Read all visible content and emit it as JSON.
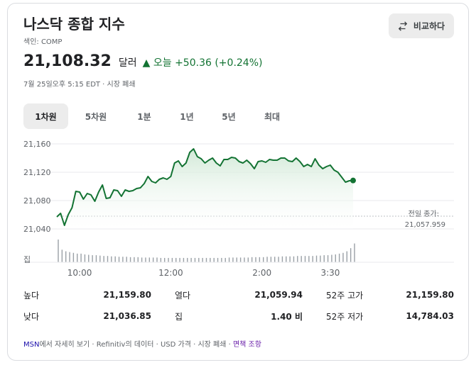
{
  "header": {
    "title": "나스닥 종합 지수",
    "index_label": "색인: COMP",
    "compare_label": "비교하다"
  },
  "quote": {
    "price": "21,108.32",
    "currency": "달러",
    "change_prefix": "▲ 오늘",
    "change": "+50.36 (+0.24%)",
    "timestamp": "7월 25일오후 5:15 EDT · 시장 폐쇄"
  },
  "tabs": [
    {
      "label": "1차원"
    },
    {
      "label": "5차원"
    },
    {
      "label": "1분"
    },
    {
      "label": "1년"
    },
    {
      "label": "5년"
    },
    {
      "label": "최대"
    }
  ],
  "prev_close": {
    "label": "전일 종가:",
    "value": "21,057.959"
  },
  "volume_label": "집",
  "colors": {
    "line": "#137333",
    "fill_top": "#cfe8d5",
    "accent": "#137333"
  },
  "chart_data": {
    "type": "area",
    "y_ticks": [
      "21,160",
      "21,120",
      "21,080",
      "21,040"
    ],
    "y_tick_values": [
      21160,
      21120,
      21080,
      21040
    ],
    "ylim": [
      21030,
      21170
    ],
    "x_ticks": [
      "10:00",
      "12:00",
      "2:00",
      "3:30"
    ],
    "x_tick_times": [
      600,
      720,
      840,
      930
    ],
    "x_range_minutes": [
      570,
      960
    ],
    "prev_close_value": 21057.959,
    "series": [
      {
        "x": [
          570,
          575,
          580,
          585,
          590,
          595,
          600,
          605,
          610,
          615,
          620,
          625,
          630,
          635,
          640,
          645,
          650,
          655,
          660,
          665,
          670,
          675,
          680,
          685,
          690,
          695,
          700,
          705,
          710,
          715,
          720,
          725,
          730,
          735,
          740,
          745,
          750,
          755,
          760,
          765,
          770,
          775,
          780,
          785,
          790,
          795,
          800,
          805,
          810,
          815,
          820,
          825,
          830,
          835,
          840,
          845,
          850,
          855,
          860,
          865,
          870,
          875,
          880,
          885,
          890,
          895,
          900,
          905,
          910,
          915,
          920,
          925,
          930,
          935,
          940,
          945,
          950,
          955,
          960
        ],
        "values": [
          21057,
          21062,
          21045,
          21060,
          21070,
          21093,
          21092,
          21082,
          21090,
          21088,
          21079,
          21092,
          21102,
          21083,
          21084,
          21095,
          21094,
          21086,
          21095,
          21093,
          21094,
          21097,
          21098,
          21104,
          21114,
          21107,
          21105,
          21110,
          21112,
          21110,
          21114,
          21133,
          21136,
          21128,
          21133,
          21148,
          21153,
          21142,
          21139,
          21133,
          21137,
          21140,
          21133,
          21129,
          21138,
          21138,
          21141,
          21140,
          21135,
          21133,
          21137,
          21132,
          21125,
          21135,
          21136,
          21134,
          21138,
          21137,
          21137,
          21140,
          21140,
          21136,
          21135,
          21140,
          21135,
          21128,
          21131,
          21128,
          21139,
          21130,
          21125,
          21128,
          21130,
          21123,
          21120,
          21113,
          21106,
          21108,
          21108.32
        ]
      }
    ],
    "volume": [
      58,
      32,
      28,
      26,
      24,
      22,
      22,
      20,
      19,
      18,
      18,
      17,
      16,
      16,
      15,
      15,
      14,
      14,
      14,
      13,
      13,
      13,
      12,
      12,
      12,
      12,
      12,
      11,
      11,
      11,
      11,
      11,
      11,
      11,
      11,
      11,
      11,
      11,
      11,
      11,
      11,
      11,
      11,
      11,
      11,
      12,
      12,
      12,
      12,
      12,
      12,
      13,
      13,
      13,
      13,
      14,
      14,
      14,
      14,
      15,
      15,
      15,
      15,
      16,
      16,
      16,
      16,
      16,
      17,
      17,
      18,
      18,
      19,
      20,
      22,
      24,
      28,
      36,
      48
    ]
  },
  "stats": {
    "high_label": "높다",
    "high": "21,159.80",
    "open_label": "열다",
    "open": "21,059.94",
    "w52_high_label": "52주 고가",
    "w52_high": "21,159.80",
    "low_label": "낮다",
    "low": "21,036.85",
    "vol_label": "집",
    "vol": "1.40 비",
    "w52_low_label": "52주 저가",
    "w52_low": "14,784.03"
  },
  "footer": {
    "msn": "MSN",
    "text": "에서 자세히 보기 · Refinitiv의 데이터 · USD 가격 · 시장 폐쇄 · ",
    "disclaimer": "면책 조항"
  }
}
